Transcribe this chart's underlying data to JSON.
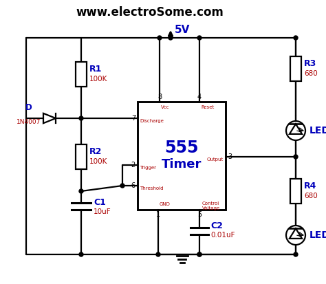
{
  "title": "www.electroSome.com",
  "title_color": "#000000",
  "title_fontsize": 12,
  "bg_color": "#ffffff",
  "wire_color": "#000000",
  "blue_color": "#0000bb",
  "red_color": "#aa0000",
  "vcc_label": "5V",
  "r1_label": "R1",
  "r1_value": "100K",
  "r2_label": "R2",
  "r2_value": "100K",
  "r3_label": "R3",
  "r3_value": "680",
  "r4_label": "R4",
  "r4_value": "680",
  "c1_label": "C1",
  "c1_value": "10uF",
  "c2_label": "C2",
  "c2_value": "0.01uF",
  "d_label": "D",
  "d_value": "1N4007",
  "timer_label": "555",
  "timer_sub": "Timer",
  "led_label": "LED"
}
